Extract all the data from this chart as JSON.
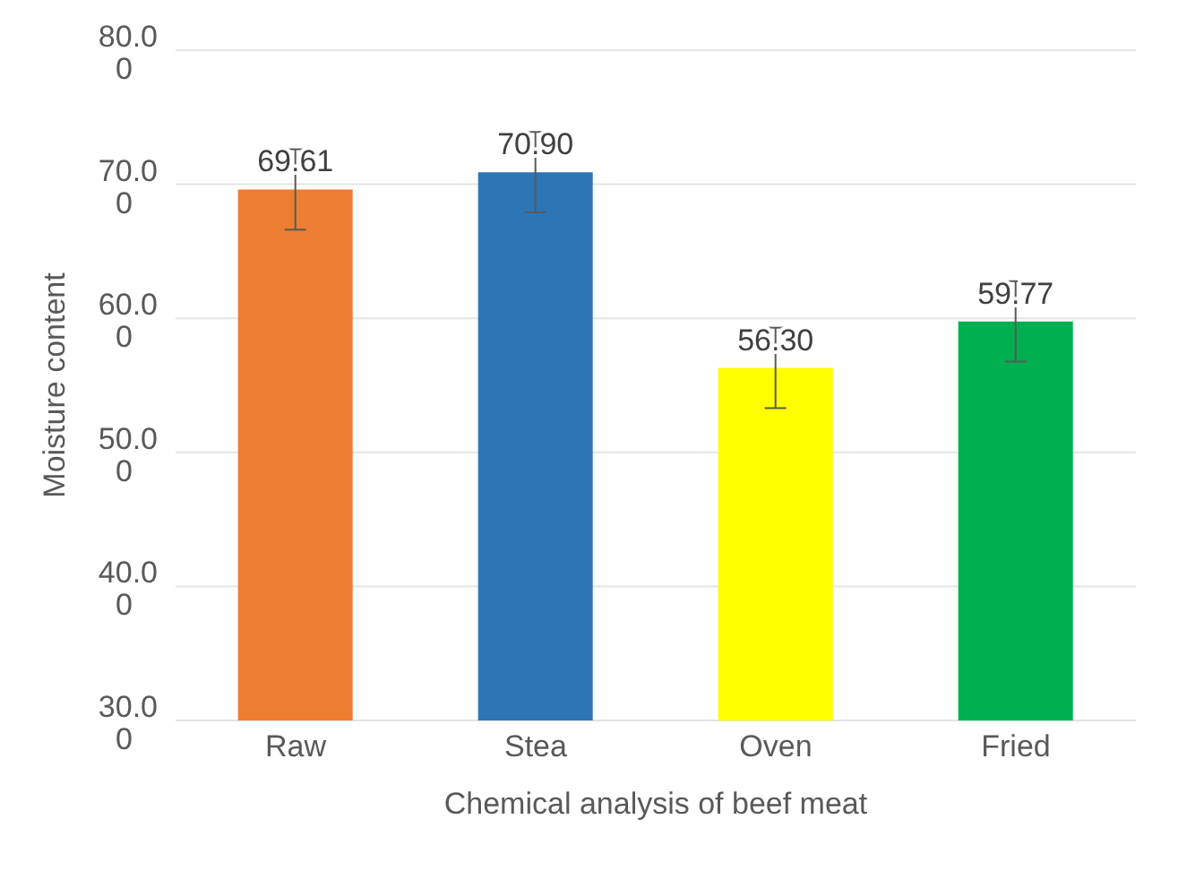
{
  "chart_data": {
    "type": "bar",
    "xlabel": "Chemical analysis of beef meat",
    "ylabel": "Moisture content",
    "categories": [
      "Raw",
      "Stea",
      "Oven",
      "Fried"
    ],
    "values": [
      69.61,
      70.9,
      56.3,
      59.77
    ],
    "colors": [
      "#ed7d31",
      "#2e75b6",
      "#ffff00",
      "#00b050"
    ],
    "errors": [
      3,
      3,
      3,
      3
    ],
    "value_labels": [
      "69.61",
      "70.90",
      "56.30",
      "59.77"
    ],
    "ylim": [
      30,
      80
    ],
    "yticks": [
      {
        "value": 30,
        "label": "30.00"
      },
      {
        "value": 40,
        "label": "40.00"
      },
      {
        "value": 50,
        "label": "50.00"
      },
      {
        "value": 60,
        "label": "60.00"
      },
      {
        "value": 70,
        "label": "70.00"
      },
      {
        "value": 80,
        "label": "80.00"
      }
    ],
    "grid": "y"
  }
}
